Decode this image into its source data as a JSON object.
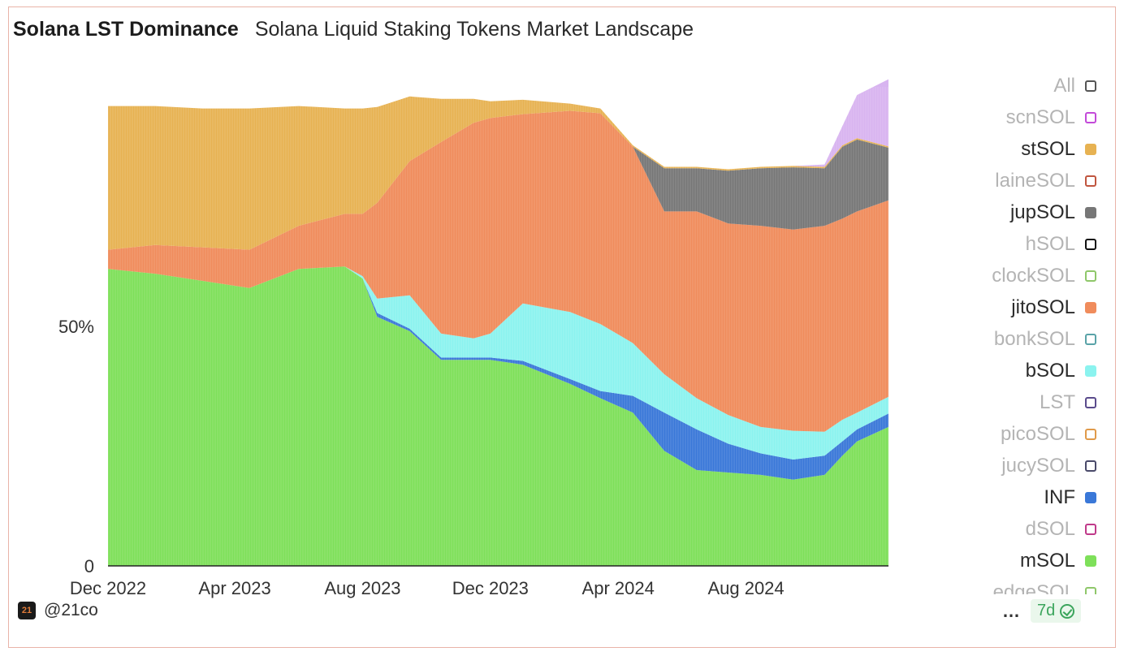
{
  "header": {
    "title": "Solana LST Dominance",
    "subtitle": "Solana Liquid Staking Tokens Market Landscape"
  },
  "footer": {
    "handle": "@21co",
    "logo_text": "21",
    "more_label": "…",
    "badge_label": "7d"
  },
  "legend": [
    {
      "label": "All",
      "color": "#555555",
      "active": false
    },
    {
      "label": "scnSOL",
      "color": "#c34ad9",
      "active": false
    },
    {
      "label": "stSOL",
      "color": "#e7b252",
      "active": true
    },
    {
      "label": "laineSOL",
      "color": "#c0553f",
      "active": false
    },
    {
      "label": "jupSOL",
      "color": "#777777",
      "active": true
    },
    {
      "label": "hSOL",
      "color": "#111111",
      "active": false
    },
    {
      "label": "clockSOL",
      "color": "#8fc76a",
      "active": false
    },
    {
      "label": "jitoSOL",
      "color": "#f08c5c",
      "active": true
    },
    {
      "label": "bonkSOL",
      "color": "#5aa3a8",
      "active": false
    },
    {
      "label": "bSOL",
      "color": "#8bf3ef",
      "active": true
    },
    {
      "label": "LST",
      "color": "#5a4b8c",
      "active": false
    },
    {
      "label": "picoSOL",
      "color": "#e09a4a",
      "active": false
    },
    {
      "label": "jucySOL",
      "color": "#4a4a6a",
      "active": false
    },
    {
      "label": "INF",
      "color": "#3a78d8",
      "active": true
    },
    {
      "label": "dSOL",
      "color": "#c03a8a",
      "active": false
    },
    {
      "label": "mSOL",
      "color": "#7ee05a",
      "active": true
    },
    {
      "label": "edgeSOL",
      "color": "#8fc76a",
      "active": false
    }
  ],
  "chart_data": {
    "type": "area",
    "stacked": true,
    "y_unit": "percent",
    "ylim": [
      0,
      100
    ],
    "yticks": [
      {
        "value": 0,
        "label": "0"
      },
      {
        "value": 50,
        "label": "50%"
      }
    ],
    "xticks": [
      {
        "date": "2022-12-01",
        "label": "Dec 2022"
      },
      {
        "date": "2023-04-01",
        "label": "Apr 2023"
      },
      {
        "date": "2023-08-01",
        "label": "Aug 2023"
      },
      {
        "date": "2023-12-01",
        "label": "Dec 2023"
      },
      {
        "date": "2024-04-01",
        "label": "Apr 2024"
      },
      {
        "date": "2024-08-01",
        "label": "Aug 2024"
      }
    ],
    "xlim": [
      "2022-12-01",
      "2024-12-15"
    ],
    "x": [
      "2022-12-01",
      "2023-01-15",
      "2023-03-01",
      "2023-04-15",
      "2023-06-01",
      "2023-07-15",
      "2023-08-01",
      "2023-08-15",
      "2023-09-15",
      "2023-10-15",
      "2023-11-15",
      "2023-12-01",
      "2024-01-01",
      "2024-02-15",
      "2024-03-15",
      "2024-04-15",
      "2024-05-15",
      "2024-06-15",
      "2024-07-15",
      "2024-08-15",
      "2024-09-15",
      "2024-10-15",
      "2024-11-01",
      "2024-11-15",
      "2024-12-15"
    ],
    "series": [
      {
        "name": "mSOL",
        "color": "#7ee05a",
        "values": [
          62.0,
          61.0,
          59.5,
          58.0,
          62.0,
          62.5,
          60.0,
          52.0,
          49.0,
          43.0,
          43.0,
          43.0,
          42.0,
          38.0,
          35.0,
          32.0,
          24.0,
          20.0,
          19.5,
          19.0,
          18.0,
          19.0,
          23.0,
          26.0,
          29.0
        ]
      },
      {
        "name": "INF",
        "color": "#3a78d8",
        "values": [
          0,
          0,
          0,
          0,
          0,
          0,
          0,
          0.8,
          0.5,
          0.5,
          0.5,
          0.5,
          0.8,
          1.0,
          1.5,
          3.5,
          8.0,
          8.5,
          6.0,
          4.5,
          4.2,
          4.0,
          3.0,
          2.5,
          2.8
        ]
      },
      {
        "name": "bSOL",
        "color": "#8bf3ef",
        "values": [
          0,
          0,
          0,
          0,
          0,
          0,
          0.5,
          3.0,
          7.0,
          5.0,
          4.0,
          5.0,
          12.0,
          14.0,
          14.0,
          11.0,
          8.0,
          6.5,
          6.0,
          5.5,
          6.0,
          5.0,
          4.5,
          3.5,
          3.5
        ]
      },
      {
        "name": "jitoSOL",
        "color": "#f08c5c",
        "values": [
          4.0,
          6.0,
          7.0,
          8.0,
          9.0,
          11.0,
          13.0,
          20.0,
          28.0,
          40.0,
          45.0,
          45.0,
          39.5,
          42.0,
          44.0,
          41.0,
          34.0,
          39.0,
          40.0,
          42.0,
          42.0,
          43.0,
          42.0,
          42.0,
          41.0
        ]
      },
      {
        "name": "jupSOL",
        "color": "#777777",
        "values": [
          0,
          0,
          0,
          0,
          0,
          0,
          0,
          0,
          0,
          0,
          0,
          0,
          0,
          0,
          0,
          0,
          9.0,
          9.0,
          11.0,
          12.0,
          13.0,
          12.0,
          15.0,
          15.0,
          11.0
        ]
      },
      {
        "name": "stSOL",
        "color": "#e7b252",
        "values": [
          30.0,
          29.0,
          29.0,
          29.5,
          25.0,
          22.0,
          22.0,
          20.0,
          13.5,
          9.0,
          5.0,
          3.5,
          3.0,
          1.5,
          1.0,
          0.3,
          0.3,
          0.3,
          0.3,
          0.3,
          0.3,
          0.3,
          0.3,
          0.3,
          0.3
        ]
      },
      {
        "name": "scnSOL",
        "color": "#d8b4f0",
        "values": [
          0,
          0,
          0,
          0,
          0,
          0,
          0,
          0,
          0,
          0,
          0,
          0,
          0,
          0,
          0,
          0,
          0,
          0,
          0,
          0,
          0,
          0.5,
          4.0,
          9.0,
          14.0
        ]
      }
    ]
  }
}
